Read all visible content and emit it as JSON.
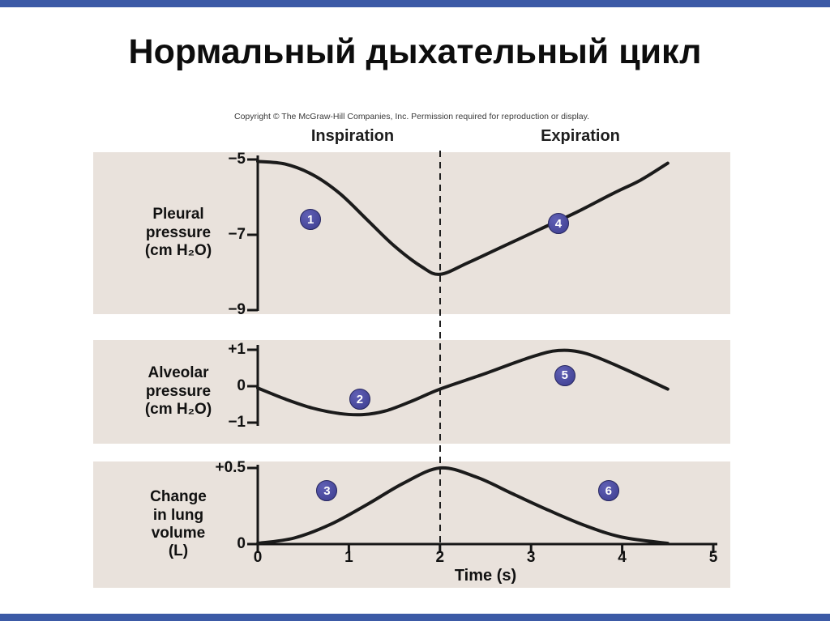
{
  "page": {
    "title": "Нормальный дыхательный цикл",
    "accent_bar_color": "#3c5aa6",
    "background": "#ffffff"
  },
  "figure": {
    "copyright": "Copyright © The McGraw-Hill Companies, Inc. Permission required for reproduction or display.",
    "phase_labels": {
      "inspiration": "Inspiration",
      "expiration": "Expiration"
    },
    "panel_bg": "#e9e2dc",
    "curve_color": "#1b1b1b",
    "axis_color": "#161616",
    "marker_color": "#3c3c8e",
    "dashed_line_t": 2,
    "time_axis": {
      "label": "Time (s)",
      "ticks": [
        "0",
        "1",
        "2",
        "3",
        "4",
        "5"
      ],
      "values": [
        0,
        1,
        2,
        3,
        4,
        5
      ]
    }
  },
  "chart_data": [
    {
      "type": "line",
      "title": "Pleural pressure",
      "ylabel": "Pleural\npressure\n(cm H₂O)",
      "xlabel": "Time (s)",
      "xlim": [
        0,
        5
      ],
      "ylim": [
        -9,
        -5
      ],
      "yticks": [
        {
          "value": -5,
          "label": "−5"
        },
        {
          "value": -7,
          "label": "−7"
        },
        {
          "value": -9,
          "label": "−9"
        }
      ],
      "x": [
        0,
        0.3,
        0.6,
        0.9,
        1.2,
        1.5,
        1.8,
        2.0,
        2.3,
        2.7,
        3.1,
        3.5,
        3.9,
        4.2,
        4.5
      ],
      "y": [
        -5.05,
        -5.12,
        -5.4,
        -5.9,
        -6.6,
        -7.3,
        -7.85,
        -8.05,
        -7.75,
        -7.3,
        -6.85,
        -6.4,
        -5.9,
        -5.55,
        -5.1
      ],
      "markers": [
        {
          "label": "1",
          "t": 0.58,
          "value": -6.6
        },
        {
          "label": "4",
          "t": 3.3,
          "value": -6.7
        }
      ]
    },
    {
      "type": "line",
      "title": "Alveolar pressure",
      "ylabel": "Alveolar\npressure\n(cm H₂O)",
      "xlabel": "Time (s)",
      "xlim": [
        0,
        5
      ],
      "ylim": [
        -1,
        1
      ],
      "yticks": [
        {
          "value": 1,
          "label": "+1"
        },
        {
          "value": 0,
          "label": "0"
        },
        {
          "value": -1,
          "label": "−1"
        }
      ],
      "x": [
        0,
        0.3,
        0.6,
        0.9,
        1.15,
        1.4,
        1.7,
        2.0,
        2.5,
        3.0,
        3.3,
        3.6,
        4.0,
        4.5
      ],
      "y": [
        -0.05,
        -0.35,
        -0.6,
        -0.75,
        -0.78,
        -0.68,
        -0.4,
        -0.08,
        0.35,
        0.8,
        0.98,
        0.9,
        0.5,
        -0.08
      ],
      "markers": [
        {
          "label": "2",
          "t": 1.12,
          "value": -0.36
        },
        {
          "label": "5",
          "t": 3.37,
          "value": 0.3
        }
      ]
    },
    {
      "type": "line",
      "title": "Change in lung volume",
      "ylabel": "Change\nin lung\nvolume\n(L)",
      "xlabel": "Time (s)",
      "xlim": [
        0,
        5
      ],
      "ylim": [
        0,
        0.5
      ],
      "yticks": [
        {
          "value": 0.5,
          "label": "+0.5"
        },
        {
          "value": 0,
          "label": "0"
        }
      ],
      "x": [
        0,
        0.4,
        0.8,
        1.2,
        1.6,
        2.0,
        2.4,
        2.8,
        3.2,
        3.6,
        4.0,
        4.5
      ],
      "y": [
        0.005,
        0.04,
        0.13,
        0.26,
        0.4,
        0.5,
        0.44,
        0.33,
        0.22,
        0.12,
        0.045,
        0.005
      ],
      "markers": [
        {
          "label": "3",
          "t": 0.76,
          "value": 0.35
        },
        {
          "label": "6",
          "t": 3.85,
          "value": 0.35
        }
      ]
    }
  ]
}
